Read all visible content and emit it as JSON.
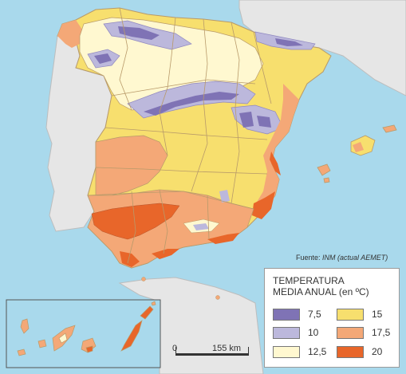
{
  "source": {
    "prefix": "Fuente: ",
    "org": "INM (actual AEMET)"
  },
  "legend": {
    "title_line1": "TEMPERATURA",
    "title_line2": "MEDIA ANUAL (en ºC)",
    "items": [
      {
        "label": "7,5",
        "color": "#7f73b5"
      },
      {
        "label": "15",
        "color": "#f7df6e"
      },
      {
        "label": "10",
        "color": "#bcb8dc"
      },
      {
        "label": "17,5",
        "color": "#f4a877"
      },
      {
        "label": "12,5",
        "color": "#fff8d0"
      },
      {
        "label": "20",
        "color": "#e8662a"
      }
    ]
  },
  "scale": {
    "zero": "0",
    "distance": "155 km"
  }
}
